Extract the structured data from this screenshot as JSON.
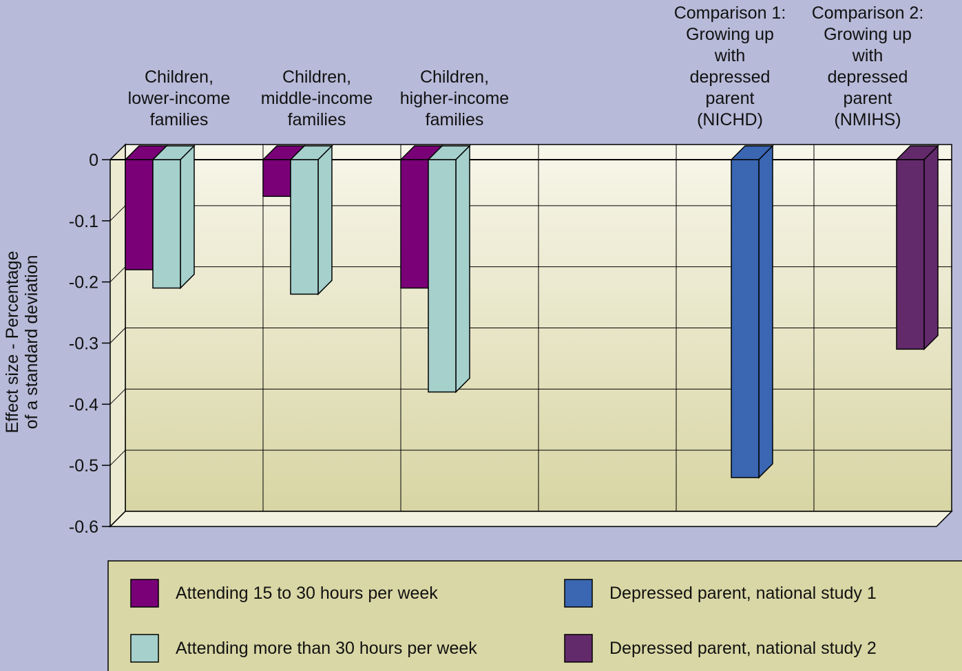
{
  "chart_data": {
    "type": "bar3d",
    "y_label": "Effect size - Percentage\nof a standard deviation",
    "categories": [
      "Children,\nlower-income\nfamilies",
      "Children,\nmiddle-income\nfamilies",
      "Children,\nhigher-income\nfamilies",
      null,
      "Comparison 1:\nGrowing up\nwith\ndepressed\nparent\n(NICHD)",
      "Comparison 2:\nGrowing up\nwith\ndepressed\nparent\n(NMIHS)"
    ],
    "series": [
      {
        "name": "Attending 15 to 30 hours per week",
        "color": "#7a0078",
        "values": [
          -0.18,
          -0.06,
          -0.21,
          null,
          null,
          null
        ]
      },
      {
        "name": "Attending more than 30 hours per week",
        "color": "#a5d0cc",
        "values": [
          -0.21,
          -0.22,
          -0.38,
          null,
          null,
          null
        ]
      },
      {
        "name": "Depressed parent, national study 1",
        "color": "#3a66b2",
        "values": [
          null,
          null,
          null,
          null,
          -0.52,
          null
        ]
      },
      {
        "name": "Depressed parent, national study 2",
        "color": "#632a6b",
        "values": [
          null,
          null,
          null,
          null,
          null,
          -0.31
        ]
      }
    ],
    "ylim": [
      -0.6,
      0
    ],
    "yticks": [
      0,
      -0.1,
      -0.2,
      -0.3,
      -0.4,
      -0.5,
      -0.6
    ],
    "grid": true
  }
}
